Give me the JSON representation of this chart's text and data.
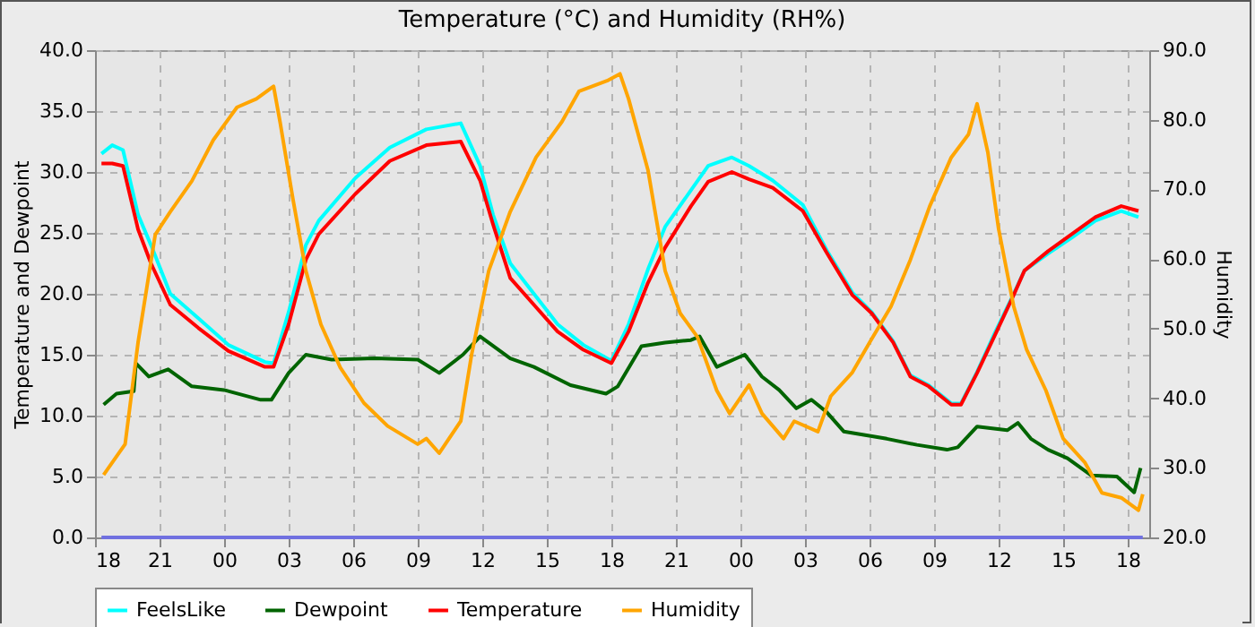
{
  "chart_data": {
    "type": "line",
    "title": "Temperature (°C) and Humidity (RH%)",
    "ylabel": "Temperature and Dewpoint",
    "y2label": "Humidity",
    "xlim": [
      18,
      67
    ],
    "xticks": [
      18,
      21,
      {
        "value": 24,
        "label": "00"
      },
      {
        "value": 27,
        "label": "03"
      },
      {
        "value": 30,
        "label": "06"
      },
      {
        "value": 33,
        "label": "09"
      },
      {
        "value": 36,
        "label": "12"
      },
      {
        "value": 39,
        "label": "15"
      },
      {
        "value": 42,
        "label": "18"
      },
      {
        "value": 45,
        "label": "21"
      },
      {
        "value": 48,
        "label": "00"
      },
      {
        "value": 51,
        "label": "03"
      },
      {
        "value": 54,
        "label": "06"
      },
      {
        "value": 57,
        "label": "09"
      },
      {
        "value": 60,
        "label": "12"
      },
      {
        "value": 63,
        "label": "15"
      },
      {
        "value": 66,
        "label": "18"
      }
    ],
    "ylim": [
      0,
      40
    ],
    "yticks": [
      {
        "value": 0,
        "label": "0.0"
      },
      {
        "value": 5,
        "label": "5.0"
      },
      {
        "value": 10,
        "label": "10.0"
      },
      {
        "value": 15,
        "label": "15.0"
      },
      {
        "value": 20,
        "label": "20.0"
      },
      {
        "value": 25,
        "label": "25.0"
      },
      {
        "value": 30,
        "label": "30.0"
      },
      {
        "value": 35,
        "label": "35.0"
      },
      {
        "value": 40,
        "label": "40.0"
      }
    ],
    "y2lim": [
      20,
      90
    ],
    "y2ticks": [
      {
        "value": 20,
        "label": "20.0"
      },
      {
        "value": 30,
        "label": "30.0"
      },
      {
        "value": 40,
        "label": "40.0"
      },
      {
        "value": 50,
        "label": "50.0"
      },
      {
        "value": 60,
        "label": "60.0"
      },
      {
        "value": 70,
        "label": "70.0"
      },
      {
        "value": 80,
        "label": "80.0"
      },
      {
        "value": 90,
        "label": "90.0"
      }
    ],
    "grid": true,
    "legend": "bottom",
    "series": [
      {
        "color": "#7070e0",
        "x": [
          18.3,
          66.7
        ],
        "values": [
          0,
          0
        ]
      },
      {
        "name": "FeelsLike",
        "color": "#00ffff",
        "x": [
          18.3,
          18.8,
          19.3,
          20.0,
          20.6,
          21.5,
          22.8,
          24.2,
          25.9,
          26.3,
          27,
          27.8,
          28.4,
          30.1,
          31.7,
          33.4,
          35,
          35.9,
          36.5,
          37.3,
          38.4,
          39.5,
          40.7,
          42,
          42.8,
          43.7,
          44.5,
          45.7,
          46.5,
          47.6,
          48.4,
          49.5,
          50.9,
          52,
          53.2,
          54.1,
          55.1,
          55.9,
          56.75,
          57.8,
          58.25,
          59,
          59.8,
          60.7,
          61.2,
          62.3,
          63.4,
          64.5,
          65.7,
          66.5
        ],
        "values": [
          31.5,
          32.2,
          31.8,
          26.5,
          24.0,
          20.0,
          18.0,
          15.8,
          14.4,
          14.3,
          18.5,
          24.0,
          26.0,
          29.5,
          32.0,
          33.5,
          34.0,
          30.5,
          26.5,
          22.5,
          20.0,
          17.5,
          15.8,
          14.5,
          17.5,
          22.0,
          25.5,
          28.5,
          30.5,
          31.2,
          30.5,
          29.3,
          27.3,
          23.6,
          20.1,
          18.5,
          16.1,
          13.3,
          12.5,
          11.0,
          11.0,
          13.6,
          16.7,
          20.0,
          21.9,
          23.3,
          24.6,
          26.0,
          26.8,
          26.3
        ]
      },
      {
        "name": "Dewpoint",
        "color": "#006400",
        "x": [
          18.4,
          19.0,
          19.8,
          19.9,
          20.5,
          21.4,
          22.5,
          24,
          25.7,
          26.2,
          27,
          27.8,
          29,
          31,
          33,
          34,
          35.1,
          35.9,
          37.3,
          38.4,
          40.1,
          41.75,
          42.3,
          43.4,
          44.5,
          45.7,
          46.1,
          46.9,
          48.2,
          49,
          49.8,
          50.6,
          51.3,
          52,
          52.8,
          54.8,
          56.2,
          57.6,
          58.1,
          59,
          60.4,
          60.9,
          61.5,
          62.3,
          63.2,
          64.3,
          65.5,
          66.3,
          66.6
        ],
        "values": [
          10.9,
          11.8,
          12.0,
          14.3,
          13.2,
          13.8,
          12.4,
          12.1,
          11.3,
          11.3,
          13.5,
          15.0,
          14.6,
          14.7,
          14.6,
          13.5,
          15.0,
          16.5,
          14.7,
          14.0,
          12.5,
          11.8,
          12.4,
          15.7,
          16.0,
          16.2,
          16.5,
          14.0,
          15.0,
          13.2,
          12.1,
          10.6,
          11.3,
          10.3,
          8.7,
          8.1,
          7.6,
          7.2,
          7.4,
          9.1,
          8.8,
          9.4,
          8.1,
          7.2,
          6.5,
          5.1,
          5.0,
          3.7,
          5.7
        ]
      },
      {
        "name": "Temperature",
        "color": "#ff0000",
        "x": [
          18.3,
          18.8,
          19.3,
          20.0,
          20.6,
          21.5,
          22.8,
          24.2,
          25.9,
          26.3,
          27,
          27.8,
          28.4,
          30.1,
          31.7,
          33.4,
          35,
          35.9,
          36.5,
          37.3,
          38.4,
          39.5,
          40.7,
          42,
          42.8,
          43.7,
          44.5,
          45.7,
          46.5,
          47.6,
          48.4,
          49.5,
          50.9,
          52,
          53.2,
          54.1,
          55.1,
          55.9,
          56.75,
          57.8,
          58.25,
          59,
          59.8,
          60.7,
          61.2,
          62.3,
          63.4,
          64.5,
          65.7,
          66.5
        ],
        "values": [
          30.7,
          30.7,
          30.5,
          25.3,
          22.5,
          19.1,
          17.2,
          15.3,
          14.0,
          14.0,
          17.5,
          22.8,
          24.9,
          28.2,
          30.9,
          32.2,
          32.5,
          29.3,
          25.7,
          21.3,
          19.1,
          16.9,
          15.4,
          14.3,
          16.9,
          20.9,
          23.8,
          27.2,
          29.2,
          30.0,
          29.4,
          28.7,
          26.8,
          23.4,
          19.9,
          18.4,
          16.0,
          13.2,
          12.4,
          10.9,
          10.9,
          13.5,
          16.5,
          19.9,
          21.9,
          23.5,
          24.9,
          26.3,
          27.2,
          26.8
        ]
      },
      {
        "name": "Humidity",
        "color": "#ffa500",
        "axis": "y2",
        "x": [
          18.4,
          19.4,
          20,
          20.8,
          21.5,
          22.5,
          23.5,
          24.6,
          25.5,
          26.3,
          26.6,
          27.2,
          27.8,
          28.5,
          29.4,
          30.5,
          31.6,
          33,
          33.4,
          34,
          35,
          35.5,
          36.3,
          37.3,
          38.5,
          39.7,
          40.5,
          41.8,
          42.4,
          42.8,
          43.7,
          44.5,
          45.2,
          46,
          46.9,
          47.5,
          48.4,
          49,
          50,
          50.5,
          51.6,
          52.2,
          53.2,
          54,
          55,
          55.9,
          56.8,
          57.8,
          58.6,
          59,
          59.5,
          60,
          60.7,
          61.3,
          62.2,
          63,
          64,
          64.8,
          65.7,
          66.5,
          66.7
        ],
        "values": [
          29.0,
          33.4,
          48.0,
          63.5,
          66.8,
          71.2,
          77.1,
          81.8,
          83.0,
          84.8,
          79.7,
          68.6,
          58.3,
          50.6,
          44.4,
          39.3,
          36.0,
          33.4,
          34.2,
          32.1,
          36.7,
          46.2,
          58.3,
          66.8,
          74.6,
          79.7,
          84.1,
          85.6,
          86.6,
          83.0,
          72.8,
          58.3,
          52.2,
          48.8,
          41.1,
          37.8,
          41.9,
          37.8,
          34.2,
          36.7,
          35.2,
          40.3,
          43.7,
          48.0,
          53.2,
          59.9,
          67.6,
          74.6,
          77.9,
          82.3,
          75.3,
          64.3,
          53.2,
          47.0,
          41.1,
          34.2,
          30.8,
          26.4,
          25.7,
          23.9,
          26.2
        ]
      }
    ]
  }
}
